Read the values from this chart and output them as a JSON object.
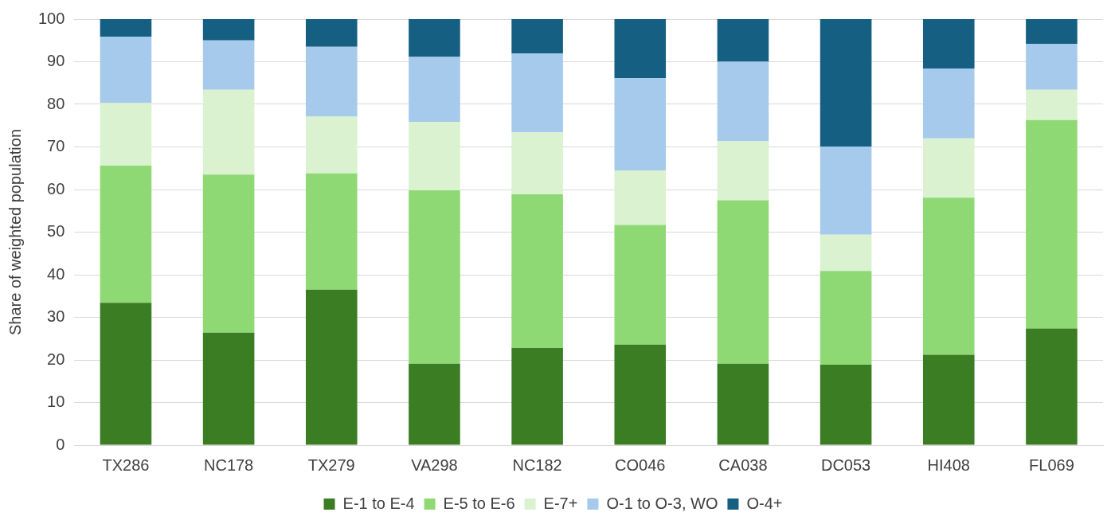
{
  "chart_data": {
    "type": "bar",
    "stacked": true,
    "ylabel": "Share of weighted population",
    "categories": [
      "TX286",
      "NC178",
      "TX279",
      "VA298",
      "NC182",
      "CO046",
      "CA038",
      "DC053",
      "HI408",
      "FL069"
    ],
    "series": [
      {
        "name": "E-1 to E-4",
        "color": "#3b7d23",
        "values": [
          33.4,
          26.4,
          36.5,
          19.1,
          22.8,
          23.6,
          19.1,
          18.9,
          21.2,
          27.4
        ]
      },
      {
        "name": "E-5 to E-6",
        "color": "#8ed973",
        "values": [
          32.2,
          37.1,
          27.3,
          40.7,
          36.1,
          28.1,
          38.4,
          22.0,
          36.9,
          48.9
        ]
      },
      {
        "name": "E-7+",
        "color": "#daf2d0",
        "values": [
          14.7,
          19.9,
          13.3,
          16.1,
          14.5,
          12.8,
          13.9,
          8.5,
          13.9,
          7.1
        ]
      },
      {
        "name": "O-1 to O-3, WO",
        "color": "#a6caec",
        "values": [
          15.6,
          11.6,
          16.4,
          15.2,
          18.5,
          21.6,
          18.6,
          20.7,
          16.4,
          10.8
        ]
      },
      {
        "name": "O-4+",
        "color": "#155f82",
        "values": [
          4.1,
          5.0,
          6.6,
          8.9,
          8.1,
          13.9,
          10.0,
          29.9,
          11.6,
          5.8
        ]
      }
    ],
    "ylim": [
      0,
      100
    ],
    "yticks": [
      0,
      10,
      20,
      30,
      40,
      50,
      60,
      70,
      80,
      90,
      100
    ],
    "grid": "y",
    "legend": "bottom"
  }
}
